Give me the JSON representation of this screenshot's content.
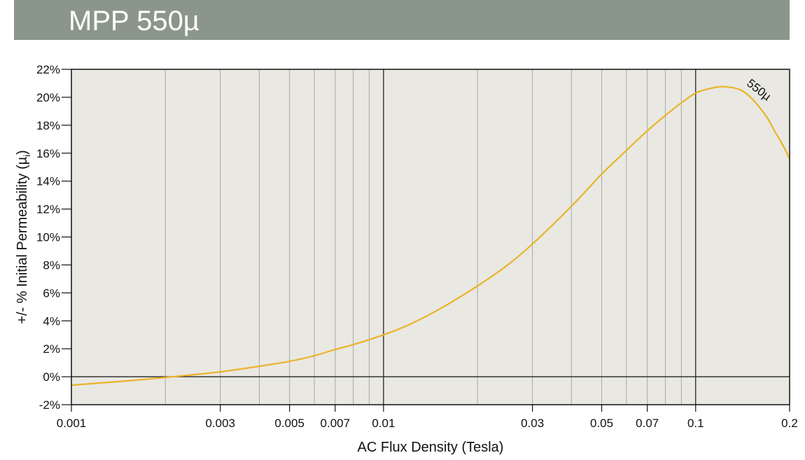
{
  "header": {
    "title": "MPP 550µ"
  },
  "chart_data": {
    "type": "line",
    "title": "MPP 550µ",
    "xlabel": "AC Flux Density (Tesla)",
    "ylabel": "+/- % Initial Permeability (µ",
    "ylabel_subscript": "i",
    "ylabel_close": ")",
    "x_scale": "log",
    "xlim": [
      0.001,
      0.2
    ],
    "ylim": [
      -2,
      22
    ],
    "x_ticks": [
      0.001,
      0.003,
      0.005,
      0.007,
      0.01,
      0.03,
      0.05,
      0.07,
      0.1,
      0.2
    ],
    "x_tick_labels": [
      "0.001",
      "0.003",
      "0.005",
      "0.007",
      "0.01",
      "0.03",
      "0.05",
      "0.07",
      "0.1",
      "0.2"
    ],
    "y_ticks": [
      -2,
      0,
      2,
      4,
      6,
      8,
      10,
      12,
      14,
      16,
      18,
      20,
      22
    ],
    "y_tick_labels": [
      "-2%",
      "0%",
      "2%",
      "4%",
      "6%",
      "8%",
      "10%",
      "12%",
      "14%",
      "16%",
      "18%",
      "20%",
      "22%"
    ],
    "grid": true,
    "colors": {
      "plot_bg": "#e9e8e2",
      "line": "#e9b42a",
      "grid_minor": "#a8a8a8",
      "grid_major": "#222222"
    },
    "series": [
      {
        "name": "550µ",
        "x": [
          0.001,
          0.0015,
          0.002,
          0.003,
          0.004,
          0.005,
          0.006,
          0.007,
          0.008,
          0.01,
          0.012,
          0.015,
          0.02,
          0.025,
          0.03,
          0.04,
          0.05,
          0.06,
          0.07,
          0.08,
          0.09,
          0.1,
          0.11,
          0.12,
          0.13,
          0.14,
          0.15,
          0.16,
          0.17,
          0.18,
          0.19,
          0.2
        ],
        "y": [
          -0.6,
          -0.3,
          -0.05,
          0.35,
          0.75,
          1.1,
          1.5,
          1.95,
          2.3,
          3.0,
          3.7,
          4.8,
          6.5,
          8.0,
          9.5,
          12.2,
          14.5,
          16.2,
          17.6,
          18.7,
          19.6,
          20.3,
          20.6,
          20.75,
          20.7,
          20.5,
          20.0,
          19.3,
          18.5,
          17.5,
          16.6,
          15.6
        ]
      }
    ]
  }
}
